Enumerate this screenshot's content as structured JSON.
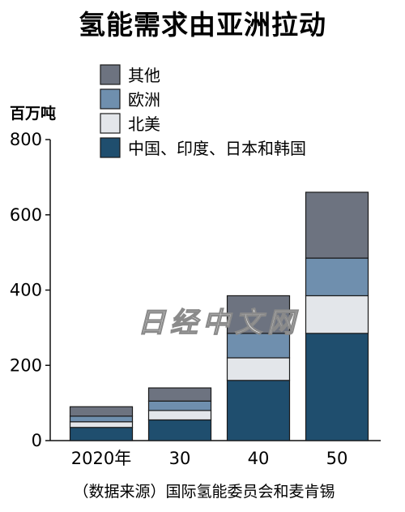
{
  "chart_data": {
    "type": "bar",
    "stacked": true,
    "title": "氢能需求由亚洲拉动",
    "ylabel": "百万吨",
    "xlabel": "",
    "ylim": [
      0,
      800
    ],
    "yticks": [
      0,
      200,
      400,
      600,
      800
    ],
    "categories": [
      "2020年",
      "30",
      "40",
      "50"
    ],
    "series": [
      {
        "name": "中国、印度、日本和韩国",
        "color": "#1f4e6e",
        "values": [
          35,
          55,
          160,
          285
        ]
      },
      {
        "name": "北美",
        "color": "#e3e6ea",
        "values": [
          15,
          25,
          60,
          100
        ]
      },
      {
        "name": "欧洲",
        "color": "#6f8fae",
        "values": [
          15,
          25,
          65,
          100
        ]
      },
      {
        "name": "其他",
        "color": "#6d7380",
        "values": [
          25,
          35,
          100,
          175
        ]
      }
    ],
    "legend_position": "top-left",
    "source": "（数据来源）国际氢能委员会和麦肯锡",
    "watermark": "日经中文网"
  }
}
